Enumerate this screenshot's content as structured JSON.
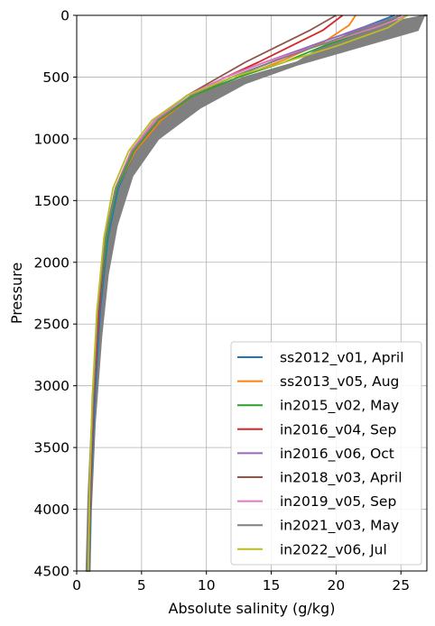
{
  "chart_data": {
    "type": "line",
    "title": "",
    "xlabel": "Absolute salinity (g/kg)",
    "ylabel": "Pressure",
    "xlim": [
      0,
      27
    ],
    "ylim": [
      4500,
      0
    ],
    "y_inverted": true,
    "grid": true,
    "xticks": [
      0,
      5,
      10,
      15,
      20,
      25
    ],
    "yticks": [
      0,
      500,
      1000,
      1500,
      2000,
      2500,
      3000,
      3500,
      4000,
      4500
    ],
    "legend_position": "lower-right",
    "envelope": {
      "color": "#808080",
      "left": [
        [
          27,
          0
        ],
        [
          22,
          100
        ],
        [
          19,
          250
        ],
        [
          17,
          380
        ],
        [
          13,
          500
        ],
        [
          9,
          650
        ],
        [
          6.5,
          850
        ],
        [
          4.3,
          1100
        ],
        [
          3.0,
          1400
        ],
        [
          2.2,
          1800
        ],
        [
          1.6,
          2400
        ],
        [
          1.2,
          3200
        ],
        [
          0.9,
          3900
        ],
        [
          0.75,
          4500
        ]
      ],
      "right": [
        [
          26.8,
          0
        ],
        [
          26.3,
          120
        ],
        [
          22,
          250
        ],
        [
          17,
          400
        ],
        [
          13,
          550
        ],
        [
          9.5,
          750
        ],
        [
          6.3,
          1000
        ],
        [
          4.3,
          1300
        ],
        [
          3.1,
          1700
        ],
        [
          2.4,
          2100
        ],
        [
          1.9,
          2600
        ],
        [
          1.4,
          3300
        ],
        [
          1.1,
          4000
        ],
        [
          1.0,
          4500
        ]
      ]
    },
    "series": [
      {
        "name": "ss2012_v01, April",
        "color": "#1f77b4",
        "x": [
          24.5,
          22,
          18,
          15,
          12,
          9,
          6.5,
          4.5,
          3.2,
          2.4,
          1.8,
          1.4,
          1.1,
          0.95
        ],
        "y": [
          0,
          100,
          250,
          380,
          500,
          650,
          850,
          1100,
          1400,
          1800,
          2400,
          3100,
          3800,
          4500
        ]
      },
      {
        "name": "ss2013_v05, Aug",
        "color": "#ff7f0e",
        "x": [
          21.5,
          21,
          19,
          16,
          12.5,
          9,
          6.5,
          4.5,
          3.1,
          2.3,
          1.7,
          1.3,
          1.05,
          0.9
        ],
        "y": [
          0,
          80,
          220,
          360,
          500,
          650,
          850,
          1100,
          1400,
          1800,
          2400,
          3100,
          3800,
          4500
        ]
      },
      {
        "name": "in2015_v02, May",
        "color": "#2ca02c",
        "x": [
          25,
          23,
          19,
          16,
          12.5,
          9,
          6.3,
          4.4,
          3.1,
          2.3,
          1.7,
          1.3,
          1.05,
          0.9
        ],
        "y": [
          0,
          100,
          250,
          380,
          500,
          650,
          850,
          1100,
          1400,
          1800,
          2400,
          3100,
          3800,
          4500
        ]
      },
      {
        "name": "in2016_v04, Sep",
        "color": "#d62728",
        "x": [
          20.5,
          19,
          16.5,
          14,
          11.5,
          8.5,
          6,
          4.2,
          3.0,
          2.2,
          1.7,
          1.3,
          1.05,
          0.9
        ],
        "y": [
          0,
          120,
          250,
          380,
          500,
          650,
          850,
          1100,
          1400,
          1800,
          2400,
          3100,
          3800,
          4500
        ]
      },
      {
        "name": "in2016_v06, Oct",
        "color": "#9467bd",
        "x": [
          25,
          22,
          18,
          14.5,
          11.5,
          8.5,
          6,
          4.2,
          3.0,
          2.2,
          1.6,
          1.25,
          1.0,
          0.9
        ],
        "y": [
          0,
          100,
          250,
          380,
          500,
          650,
          850,
          1100,
          1400,
          1800,
          2400,
          3100,
          3800,
          4500
        ]
      },
      {
        "name": "in2018_v03, April",
        "color": "#8c564b",
        "x": [
          20,
          18,
          15.5,
          13,
          11,
          8.5,
          6,
          4.2,
          3.0,
          2.2,
          1.6,
          1.25,
          1.0,
          0.9
        ],
        "y": [
          0,
          120,
          250,
          380,
          500,
          650,
          850,
          1100,
          1400,
          1800,
          2400,
          3100,
          3800,
          4500
        ]
      },
      {
        "name": "in2019_v05, Sep",
        "color": "#e377c2",
        "x": [
          25.5,
          23,
          18.5,
          14.5,
          11.5,
          8.5,
          6,
          4.2,
          3.0,
          2.2,
          1.6,
          1.25,
          1.0,
          0.9
        ],
        "y": [
          0,
          100,
          250,
          380,
          500,
          650,
          850,
          1100,
          1400,
          1800,
          2400,
          3100,
          3800,
          4500
        ]
      },
      {
        "name": "in2021_v03, May",
        "color": "#7f7f7f",
        "x": [
          25,
          22.5,
          18.5,
          15,
          12,
          8.8,
          6.2,
          4.3,
          3.0,
          2.2,
          1.6,
          1.25,
          1.0,
          0.9
        ],
        "y": [
          0,
          100,
          250,
          380,
          500,
          650,
          850,
          1100,
          1400,
          1800,
          2400,
          3100,
          3800,
          4500
        ]
      },
      {
        "name": "in2022_v06, Jul",
        "color": "#bcbd22",
        "x": [
          25.5,
          24,
          20,
          16,
          12,
          8.5,
          5.8,
          4.0,
          2.8,
          2.1,
          1.55,
          1.2,
          1.0,
          0.9
        ],
        "y": [
          0,
          100,
          250,
          380,
          500,
          650,
          850,
          1100,
          1400,
          1800,
          2400,
          3100,
          3800,
          4500
        ]
      }
    ]
  }
}
